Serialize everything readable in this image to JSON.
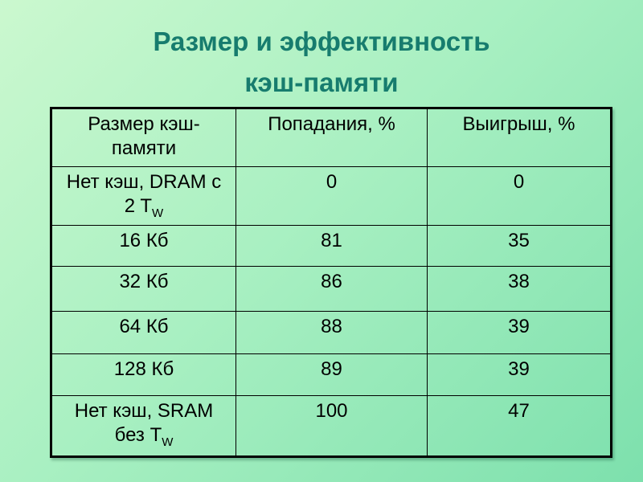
{
  "title": {
    "line1": "Размер и эффективность",
    "line2": "кэш-памяти",
    "full": "Размер и эффективность кэш-памяти"
  },
  "colors": {
    "title_text": "#177c6e",
    "table_border": "#000000",
    "cell_text": "#000000",
    "background_top_left": "#c9f8cd",
    "background_bottom_right": "#7de0ad"
  },
  "table": {
    "col_headers": [
      {
        "line1": "Размер кэш-",
        "line2": "памяти"
      },
      {
        "line1": "Попадания, %"
      },
      {
        "line1": "Выигрыш, %"
      }
    ],
    "rows": [
      {
        "size_line1": "Нет кэш, DRAM с",
        "size_line2": "2 T",
        "size_sub": "W",
        "hits": "0",
        "gain": "0"
      },
      {
        "size_line1": "16 Кб",
        "hits": "81",
        "gain": "35"
      },
      {
        "size_line1": "32 Кб",
        "hits": "86",
        "gain": "38"
      },
      {
        "size_line1": "64 Кб",
        "hits": "88",
        "gain": "39"
      },
      {
        "size_line1": "128 Кб",
        "hits": "89",
        "gain": "39"
      },
      {
        "size_line1": "Нет кэш, SRAM",
        "size_line2": "без T",
        "size_sub": "W",
        "hits": "100",
        "gain": "47"
      }
    ]
  },
  "chart_data": {
    "type": "table",
    "title": "Размер и эффективность кэш-памяти",
    "columns": [
      "Размер кэш-памяти",
      "Попадания, %",
      "Выигрыш, %"
    ],
    "rows": [
      [
        "Нет кэш, DRAM с 2 TW",
        0,
        0
      ],
      [
        "16 Кб",
        81,
        35
      ],
      [
        "32 Кб",
        86,
        38
      ],
      [
        "64 Кб",
        88,
        39
      ],
      [
        "128 Кб",
        89,
        39
      ],
      [
        "Нет кэш, SRAM без TW",
        100,
        47
      ]
    ]
  }
}
